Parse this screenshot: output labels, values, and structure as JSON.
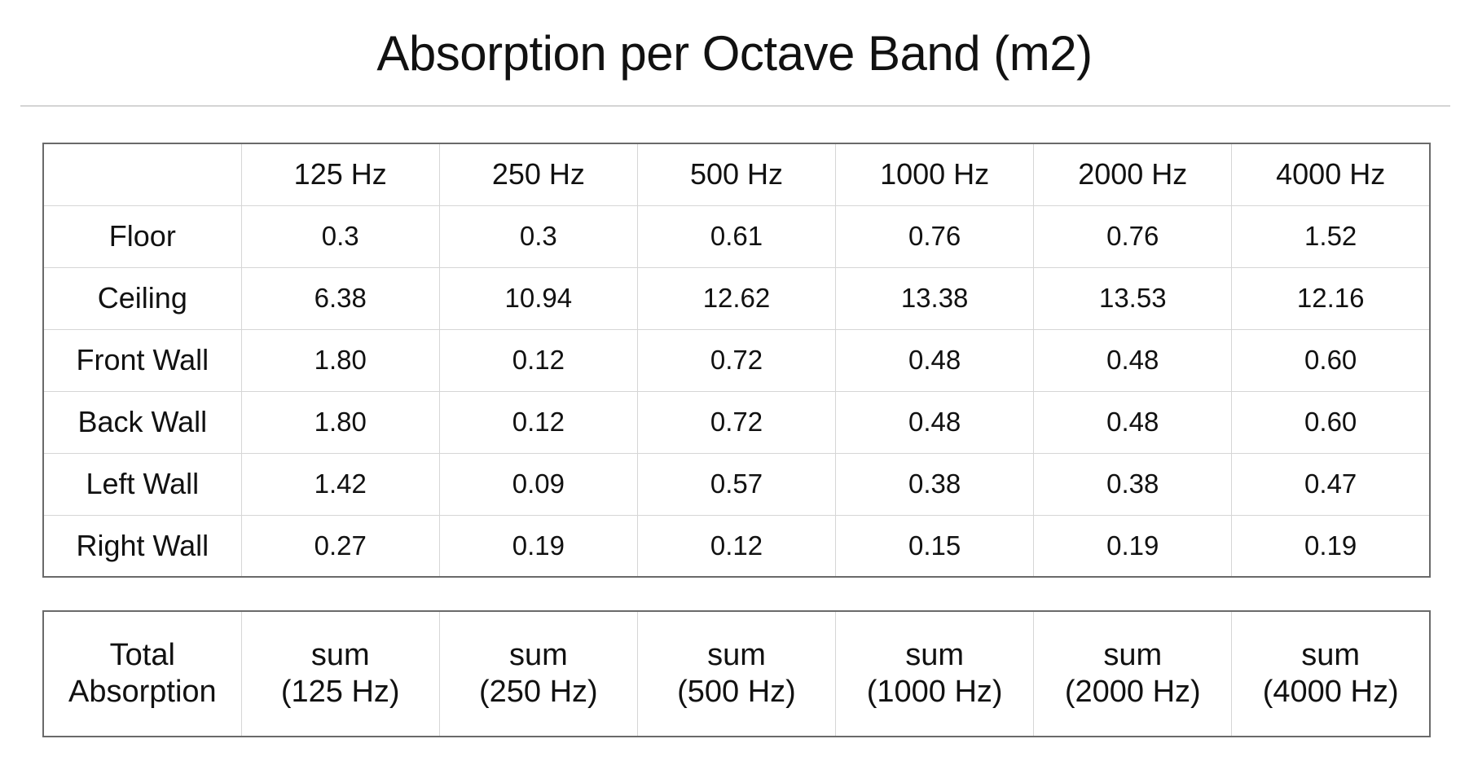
{
  "title": "Absorption per Octave Band (m2)",
  "table": {
    "columns": [
      "",
      "125 Hz",
      "250 Hz",
      "500 Hz",
      "1000 Hz",
      "2000 Hz",
      "4000 Hz"
    ],
    "rows": [
      {
        "label": "Floor",
        "values": [
          "0.3",
          "0.3",
          "0.61",
          "0.76",
          "0.76",
          "1.52"
        ]
      },
      {
        "label": "Ceiling",
        "values": [
          "6.38",
          "10.94",
          "12.62",
          "13.38",
          "13.53",
          "12.16"
        ]
      },
      {
        "label": "Front Wall",
        "values": [
          "1.80",
          "0.12",
          "0.72",
          "0.48",
          "0.48",
          "0.60"
        ]
      },
      {
        "label": "Back Wall",
        "values": [
          "1.80",
          "0.12",
          "0.72",
          "0.48",
          "0.48",
          "0.60"
        ]
      },
      {
        "label": "Left Wall",
        "values": [
          "1.42",
          "0.09",
          "0.57",
          "0.38",
          "0.38",
          "0.47"
        ]
      },
      {
        "label": "Right Wall",
        "values": [
          "0.27",
          "0.19",
          "0.12",
          "0.15",
          "0.19",
          "0.19"
        ]
      }
    ]
  },
  "totals": {
    "label": [
      "Total",
      "Absorption"
    ],
    "cells": [
      [
        "sum",
        "(125 Hz)"
      ],
      [
        "sum",
        "(250 Hz)"
      ],
      [
        "sum",
        "(500 Hz)"
      ],
      [
        "sum",
        "(1000 Hz)"
      ],
      [
        "sum",
        "(2000 Hz)"
      ],
      [
        "sum",
        "(4000 Hz)"
      ]
    ]
  }
}
